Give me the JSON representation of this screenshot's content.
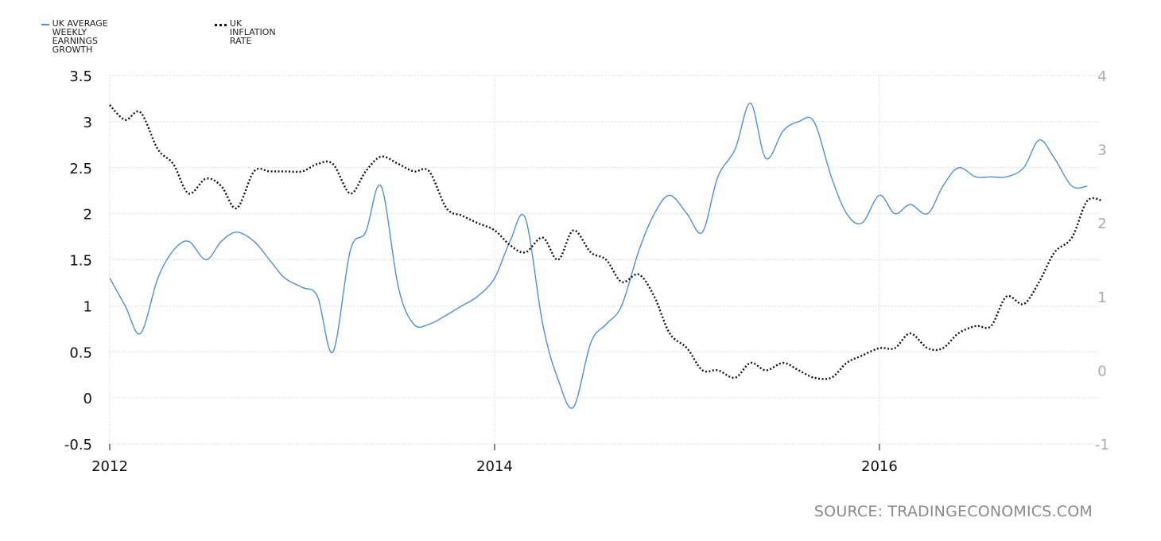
{
  "legend": {
    "series1_line1": "UK AVERAGE WEEKLY EARNINGS",
    "series1_line2": "GROWTH",
    "series2": "UK INFLATION RATE"
  },
  "source": "SOURCE: TRADINGECONOMICS.COM",
  "colors": {
    "earnings": "#4a90e2",
    "inflation": "#111111",
    "grid": "#cccccc"
  },
  "chart_data": {
    "type": "line",
    "grid": true,
    "legend_position": "top-left",
    "x_range": [
      2012.0,
      2017.05
    ],
    "x_ticks": [
      2012,
      2014,
      2016
    ],
    "x_tick_labels": [
      "2012",
      "2014",
      "2016"
    ],
    "y_left": {
      "range": [
        -0.5,
        3.5
      ],
      "ticks": [
        -0.5,
        0,
        0.5,
        1,
        1.5,
        2,
        2.5,
        3,
        3.5
      ],
      "tick_labels": [
        "-0.5",
        "0",
        "0.5",
        "1",
        "1.5",
        "2",
        "2.5",
        "3",
        "3.5"
      ]
    },
    "y_right": {
      "range": [
        -1,
        4
      ],
      "ticks": [
        -1,
        0,
        1,
        2,
        3,
        4
      ],
      "tick_labels": [
        "-1",
        "0",
        "1",
        "2",
        "3",
        "4"
      ]
    },
    "series": [
      {
        "name": "UK AVERAGE WEEKLY EARNINGS GROWTH",
        "axis": "left",
        "points": [
          [
            2012.0,
            1.3
          ],
          [
            2012.08,
            1.0
          ],
          [
            2012.16,
            0.7
          ],
          [
            2012.25,
            1.3
          ],
          [
            2012.33,
            1.6
          ],
          [
            2012.41,
            1.7
          ],
          [
            2012.5,
            1.5
          ],
          [
            2012.58,
            1.7
          ],
          [
            2012.66,
            1.8
          ],
          [
            2012.75,
            1.7
          ],
          [
            2012.83,
            1.5
          ],
          [
            2012.91,
            1.3
          ],
          [
            2013.0,
            1.2
          ],
          [
            2013.08,
            1.1
          ],
          [
            2013.16,
            0.5
          ],
          [
            2013.25,
            1.6
          ],
          [
            2013.33,
            1.8
          ],
          [
            2013.41,
            2.3
          ],
          [
            2013.5,
            1.2
          ],
          [
            2013.58,
            0.8
          ],
          [
            2013.66,
            0.8
          ],
          [
            2013.75,
            0.9
          ],
          [
            2013.83,
            1.0
          ],
          [
            2013.91,
            1.1
          ],
          [
            2014.0,
            1.3
          ],
          [
            2014.08,
            1.7
          ],
          [
            2014.16,
            1.95
          ],
          [
            2014.25,
            0.8
          ],
          [
            2014.33,
            0.2
          ],
          [
            2014.41,
            -0.1
          ],
          [
            2014.5,
            0.6
          ],
          [
            2014.58,
            0.8
          ],
          [
            2014.66,
            1.0
          ],
          [
            2014.75,
            1.6
          ],
          [
            2014.83,
            2.0
          ],
          [
            2014.91,
            2.2
          ],
          [
            2015.0,
            2.0
          ],
          [
            2015.08,
            1.8
          ],
          [
            2015.16,
            2.4
          ],
          [
            2015.25,
            2.7
          ],
          [
            2015.33,
            3.2
          ],
          [
            2015.41,
            2.6
          ],
          [
            2015.5,
            2.9
          ],
          [
            2015.58,
            3.0
          ],
          [
            2015.66,
            3.0
          ],
          [
            2015.75,
            2.4
          ],
          [
            2015.83,
            2.0
          ],
          [
            2015.91,
            1.9
          ],
          [
            2016.0,
            2.2
          ],
          [
            2016.08,
            2.0
          ],
          [
            2016.16,
            2.1
          ],
          [
            2016.25,
            2.0
          ],
          [
            2016.33,
            2.3
          ],
          [
            2016.41,
            2.5
          ],
          [
            2016.5,
            2.4
          ],
          [
            2016.58,
            2.4
          ],
          [
            2016.66,
            2.4
          ],
          [
            2016.75,
            2.5
          ],
          [
            2016.83,
            2.8
          ],
          [
            2016.91,
            2.6
          ],
          [
            2017.0,
            2.3
          ],
          [
            2017.08,
            2.3
          ]
        ]
      },
      {
        "name": "UK INFLATION RATE",
        "axis": "right",
        "points": [
          [
            2012.0,
            3.6
          ],
          [
            2012.08,
            3.4
          ],
          [
            2012.16,
            3.5
          ],
          [
            2012.25,
            3.0
          ],
          [
            2012.33,
            2.8
          ],
          [
            2012.41,
            2.4
          ],
          [
            2012.5,
            2.6
          ],
          [
            2012.58,
            2.5
          ],
          [
            2012.66,
            2.2
          ],
          [
            2012.75,
            2.7
          ],
          [
            2012.83,
            2.7
          ],
          [
            2012.91,
            2.7
          ],
          [
            2013.0,
            2.7
          ],
          [
            2013.08,
            2.8
          ],
          [
            2013.16,
            2.8
          ],
          [
            2013.25,
            2.4
          ],
          [
            2013.33,
            2.7
          ],
          [
            2013.41,
            2.9
          ],
          [
            2013.5,
            2.8
          ],
          [
            2013.58,
            2.7
          ],
          [
            2013.66,
            2.7
          ],
          [
            2013.75,
            2.2
          ],
          [
            2013.83,
            2.1
          ],
          [
            2013.91,
            2.0
          ],
          [
            2014.0,
            1.9
          ],
          [
            2014.08,
            1.7
          ],
          [
            2014.16,
            1.6
          ],
          [
            2014.25,
            1.8
          ],
          [
            2014.33,
            1.5
          ],
          [
            2014.41,
            1.9
          ],
          [
            2014.5,
            1.6
          ],
          [
            2014.58,
            1.5
          ],
          [
            2014.66,
            1.2
          ],
          [
            2014.75,
            1.3
          ],
          [
            2014.83,
            1.0
          ],
          [
            2014.91,
            0.5
          ],
          [
            2015.0,
            0.3
          ],
          [
            2015.08,
            0.0
          ],
          [
            2015.16,
            0.0
          ],
          [
            2015.25,
            -0.1
          ],
          [
            2015.33,
            0.1
          ],
          [
            2015.41,
            0.0
          ],
          [
            2015.5,
            0.1
          ],
          [
            2015.58,
            0.0
          ],
          [
            2015.66,
            -0.1
          ],
          [
            2015.75,
            -0.1
          ],
          [
            2015.83,
            0.1
          ],
          [
            2015.91,
            0.2
          ],
          [
            2016.0,
            0.3
          ],
          [
            2016.08,
            0.3
          ],
          [
            2016.16,
            0.5
          ],
          [
            2016.25,
            0.3
          ],
          [
            2016.33,
            0.3
          ],
          [
            2016.41,
            0.5
          ],
          [
            2016.5,
            0.6
          ],
          [
            2016.58,
            0.6
          ],
          [
            2016.66,
            1.0
          ],
          [
            2016.75,
            0.9
          ],
          [
            2016.83,
            1.2
          ],
          [
            2016.91,
            1.6
          ],
          [
            2017.0,
            1.8
          ],
          [
            2017.08,
            2.3
          ],
          [
            2017.16,
            2.3
          ]
        ]
      }
    ]
  }
}
